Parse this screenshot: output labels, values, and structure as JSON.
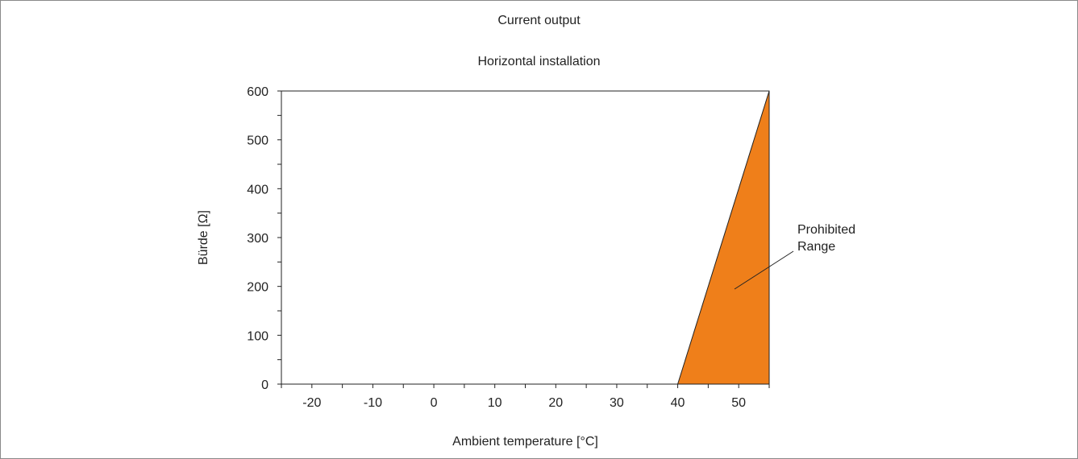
{
  "chart_data": {
    "type": "area",
    "title": "Current output",
    "subtitle": "Horizontal installation",
    "xlabel": "Ambient temperature [°C]",
    "ylabel": "Bürde [Ω]",
    "xlim": [
      -25,
      55
    ],
    "ylim": [
      0,
      600
    ],
    "x_ticks": [
      -20,
      -10,
      0,
      10,
      20,
      30,
      40,
      50
    ],
    "y_ticks": [
      0,
      100,
      200,
      300,
      400,
      500,
      600
    ],
    "x_minor_step": 5,
    "y_minor_step": 50,
    "grid": false,
    "regions": [
      {
        "label_line1": "Prohibited",
        "label_line2": "Range",
        "color": "#ef7f1a",
        "boundary": [
          [
            40,
            0
          ],
          [
            55,
            600
          ]
        ]
      }
    ]
  }
}
